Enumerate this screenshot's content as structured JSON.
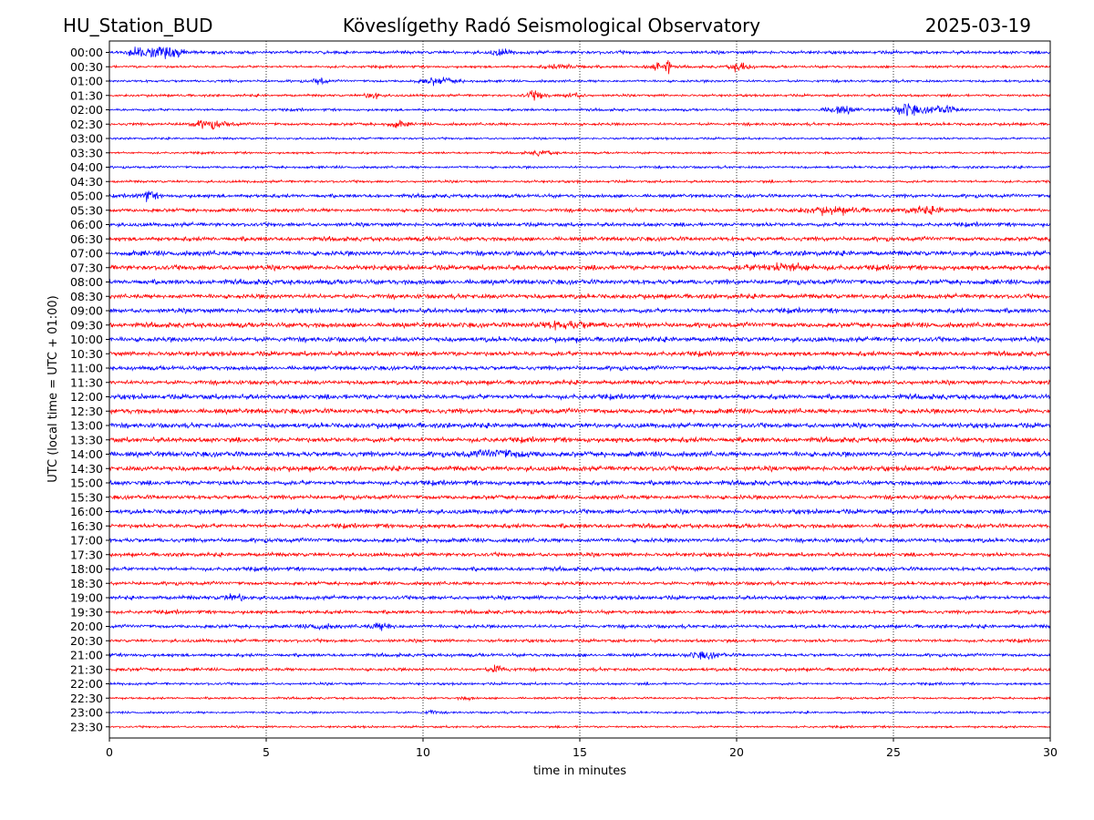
{
  "header": {
    "station": "HU_Station_BUD",
    "observatory": "Köveslígethy Radó Seismological Observatory",
    "date": "2025-03-19"
  },
  "chart_data": {
    "type": "line",
    "title": "Köveslígethy Radó Seismological Observatory",
    "xlabel": "time in minutes",
    "ylabel": "UTC (local time = UTC + 01:00)",
    "xlim": [
      0,
      30
    ],
    "x_ticks": [
      "0",
      "5",
      "10",
      "15",
      "20",
      "25",
      "30"
    ],
    "grid": "vertical dotted lines at 5-minute intervals",
    "trace_colors": [
      "#0000ff",
      "#ff0000"
    ],
    "rows": [
      {
        "label": "00:00",
        "color": "#0000ff",
        "level": 0.45,
        "events": [
          {
            "t": 1.2,
            "amp": 1.3,
            "w": 0.5
          },
          {
            "t": 2.0,
            "amp": 0.8,
            "w": 0.5
          },
          {
            "t": 12.5,
            "amp": 0.6,
            "w": 0.3
          }
        ]
      },
      {
        "label": "00:30",
        "color": "#ff0000",
        "level": 0.35,
        "events": [
          {
            "t": 17.5,
            "amp": 1.1,
            "w": 0.3
          },
          {
            "t": 17.8,
            "amp": 2.8,
            "w": 0.05
          },
          {
            "t": 20.1,
            "amp": 1.0,
            "w": 0.3
          },
          {
            "t": 14.5,
            "amp": 0.5,
            "w": 0.6
          }
        ]
      },
      {
        "label": "01:00",
        "color": "#0000ff",
        "level": 0.35,
        "events": [
          {
            "t": 6.7,
            "amp": 0.8,
            "w": 0.2
          },
          {
            "t": 10.5,
            "amp": 0.7,
            "w": 0.6
          }
        ]
      },
      {
        "label": "01:30",
        "color": "#ff0000",
        "level": 0.35,
        "events": [
          {
            "t": 8.4,
            "amp": 1.0,
            "w": 0.2
          },
          {
            "t": 13.6,
            "amp": 0.9,
            "w": 0.3
          },
          {
            "t": 14.8,
            "amp": 0.5,
            "w": 0.3
          }
        ]
      },
      {
        "label": "02:00",
        "color": "#0000ff",
        "level": 0.35,
        "events": [
          {
            "t": 23.3,
            "amp": 0.8,
            "w": 0.5
          },
          {
            "t": 25.4,
            "amp": 1.3,
            "w": 0.4
          },
          {
            "t": 26.5,
            "amp": 0.8,
            "w": 0.6
          }
        ]
      },
      {
        "label": "02:30",
        "color": "#ff0000",
        "level": 0.4,
        "events": [
          {
            "t": 3.2,
            "amp": 0.8,
            "w": 0.6
          },
          {
            "t": 9.2,
            "amp": 0.6,
            "w": 0.3
          }
        ]
      },
      {
        "label": "03:00",
        "color": "#0000ff",
        "level": 0.3,
        "events": []
      },
      {
        "label": "03:30",
        "color": "#ff0000",
        "level": 0.3,
        "events": [
          {
            "t": 13.8,
            "amp": 0.5,
            "w": 0.4
          }
        ]
      },
      {
        "label": "04:00",
        "color": "#0000ff",
        "level": 0.35,
        "events": []
      },
      {
        "label": "04:30",
        "color": "#ff0000",
        "level": 0.35,
        "events": []
      },
      {
        "label": "05:00",
        "color": "#0000ff",
        "level": 0.5,
        "events": [
          {
            "t": 1.2,
            "amp": 1.0,
            "w": 0.3
          }
        ]
      },
      {
        "label": "05:30",
        "color": "#ff0000",
        "level": 0.5,
        "events": [
          {
            "t": 23.0,
            "amp": 0.6,
            "w": 1.0
          },
          {
            "t": 26.0,
            "amp": 0.6,
            "w": 0.8
          }
        ]
      },
      {
        "label": "06:00",
        "color": "#0000ff",
        "level": 0.55,
        "events": []
      },
      {
        "label": "06:30",
        "color": "#ff0000",
        "level": 0.6,
        "events": []
      },
      {
        "label": "07:00",
        "color": "#0000ff",
        "level": 0.7,
        "events": []
      },
      {
        "label": "07:30",
        "color": "#ff0000",
        "level": 0.7,
        "events": [
          {
            "t": 21.5,
            "amp": 0.7,
            "w": 1.0
          }
        ]
      },
      {
        "label": "08:00",
        "color": "#0000ff",
        "level": 0.7,
        "events": []
      },
      {
        "label": "08:30",
        "color": "#ff0000",
        "level": 0.65,
        "events": []
      },
      {
        "label": "09:00",
        "color": "#0000ff",
        "level": 0.65,
        "events": []
      },
      {
        "label": "09:30",
        "color": "#ff0000",
        "level": 0.7,
        "events": [
          {
            "t": 14.5,
            "amp": 0.6,
            "w": 1.0
          }
        ]
      },
      {
        "label": "10:00",
        "color": "#0000ff",
        "level": 0.7,
        "events": []
      },
      {
        "label": "10:30",
        "color": "#ff0000",
        "level": 0.65,
        "events": []
      },
      {
        "label": "11:00",
        "color": "#0000ff",
        "level": 0.6,
        "events": []
      },
      {
        "label": "11:30",
        "color": "#ff0000",
        "level": 0.6,
        "events": []
      },
      {
        "label": "12:00",
        "color": "#0000ff",
        "level": 0.7,
        "events": []
      },
      {
        "label": "12:30",
        "color": "#ff0000",
        "level": 0.7,
        "events": []
      },
      {
        "label": "13:00",
        "color": "#0000ff",
        "level": 0.7,
        "events": []
      },
      {
        "label": "13:30",
        "color": "#ff0000",
        "level": 0.7,
        "events": []
      },
      {
        "label": "14:00",
        "color": "#0000ff",
        "level": 0.75,
        "events": [
          {
            "t": 12.5,
            "amp": 0.6,
            "w": 1.0
          }
        ]
      },
      {
        "label": "14:30",
        "color": "#ff0000",
        "level": 0.7,
        "events": []
      },
      {
        "label": "15:00",
        "color": "#0000ff",
        "level": 0.65,
        "events": []
      },
      {
        "label": "15:30",
        "color": "#ff0000",
        "level": 0.6,
        "events": []
      },
      {
        "label": "16:00",
        "color": "#0000ff",
        "level": 0.65,
        "events": []
      },
      {
        "label": "16:30",
        "color": "#ff0000",
        "level": 0.6,
        "events": []
      },
      {
        "label": "17:00",
        "color": "#0000ff",
        "level": 0.6,
        "events": []
      },
      {
        "label": "17:30",
        "color": "#ff0000",
        "level": 0.55,
        "events": []
      },
      {
        "label": "18:00",
        "color": "#0000ff",
        "level": 0.55,
        "events": []
      },
      {
        "label": "18:30",
        "color": "#ff0000",
        "level": 0.5,
        "events": []
      },
      {
        "label": "19:00",
        "color": "#0000ff",
        "level": 0.55,
        "events": [
          {
            "t": 4.0,
            "amp": 0.6,
            "w": 0.4
          }
        ]
      },
      {
        "label": "19:30",
        "color": "#ff0000",
        "level": 0.5,
        "events": []
      },
      {
        "label": "20:00",
        "color": "#0000ff",
        "level": 0.5,
        "events": [
          {
            "t": 8.7,
            "amp": 0.6,
            "w": 0.4
          },
          {
            "t": 6.7,
            "amp": 0.5,
            "w": 0.4
          }
        ]
      },
      {
        "label": "20:30",
        "color": "#ff0000",
        "level": 0.45,
        "events": []
      },
      {
        "label": "21:00",
        "color": "#0000ff",
        "level": 0.45,
        "events": [
          {
            "t": 19.0,
            "amp": 0.6,
            "w": 0.5
          }
        ]
      },
      {
        "label": "21:30",
        "color": "#ff0000",
        "level": 0.45,
        "events": [
          {
            "t": 12.4,
            "amp": 0.8,
            "w": 0.3
          }
        ]
      },
      {
        "label": "22:00",
        "color": "#0000ff",
        "level": 0.35,
        "events": []
      },
      {
        "label": "22:30",
        "color": "#ff0000",
        "level": 0.3,
        "events": [
          {
            "t": 11.4,
            "amp": 0.4,
            "w": 0.2
          }
        ]
      },
      {
        "label": "23:00",
        "color": "#0000ff",
        "level": 0.3,
        "events": [
          {
            "t": 10.3,
            "amp": 0.4,
            "w": 0.2
          }
        ]
      },
      {
        "label": "23:30",
        "color": "#ff0000",
        "level": 0.3,
        "events": []
      }
    ]
  }
}
